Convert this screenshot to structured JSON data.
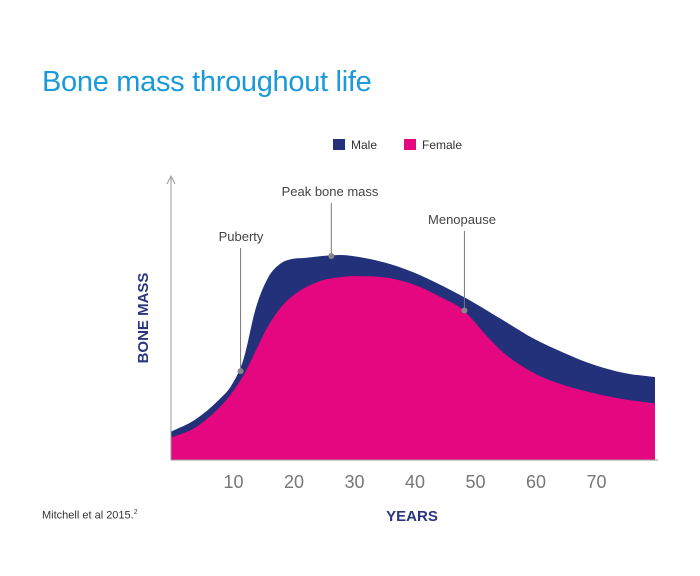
{
  "chart_data": {
    "type": "area",
    "title": "Bone mass throughout life",
    "xlabel": "YEARS",
    "ylabel": "BONE MASS",
    "xlim": [
      0,
      80
    ],
    "ylim": [
      0,
      100
    ],
    "x_ticks": [
      10,
      20,
      30,
      40,
      50,
      60,
      70
    ],
    "legend_position": "top-center",
    "grid": false,
    "series": [
      {
        "name": "Male",
        "color": "#23307a",
        "x": [
          0,
          4,
          8,
          10,
          12,
          14,
          16,
          18,
          20,
          22,
          25,
          28,
          30,
          35,
          40,
          45,
          50,
          55,
          60,
          65,
          70,
          75,
          80
        ],
        "y": [
          14,
          20,
          30,
          37,
          50,
          75,
          90,
          97,
          99.5,
          100,
          101,
          101.5,
          101,
          98,
          93,
          86,
          78,
          69,
          60,
          53,
          47,
          43,
          41
        ]
      },
      {
        "name": "Female",
        "color": "#e5077f",
        "x": [
          0,
          4,
          8,
          10,
          12,
          14,
          16,
          18,
          20,
          22,
          25,
          28,
          30,
          35,
          40,
          45,
          48,
          50,
          52,
          55,
          60,
          65,
          70,
          75,
          80
        ],
        "y": [
          11,
          16,
          26,
          33,
          42,
          54,
          66,
          75,
          81,
          85,
          89,
          90.5,
          91,
          90.5,
          87,
          80,
          75,
          69,
          62,
          53,
          43,
          37,
          33,
          30,
          28
        ]
      }
    ],
    "annotations": [
      {
        "label": "Puberty",
        "x": 11.5,
        "y": 44
      },
      {
        "label": "Peak bone mass",
        "x": 26.5,
        "y": 101
      },
      {
        "label": "Menopause",
        "x": 48.5,
        "y": 74
      }
    ],
    "source": "Mitchell et al 2015.",
    "source_ref": "2"
  }
}
